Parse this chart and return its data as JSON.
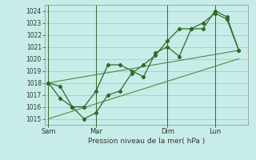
{
  "title": "",
  "xlabel": "Pression niveau de la mer( hPa )",
  "ylabel": "",
  "background_color": "#c8ede8",
  "grid_color": "#a0cdc8",
  "line_color": "#2d6b2d",
  "trend_color": "#4a8a4a",
  "ylim": [
    1014.5,
    1024.5
  ],
  "yticks": [
    1015,
    1016,
    1017,
    1018,
    1019,
    1020,
    1021,
    1022,
    1023,
    1024
  ],
  "day_labels": [
    "Sam",
    "Mar",
    "Dim",
    "Lun"
  ],
  "day_positions": [
    0,
    4,
    10,
    14
  ],
  "vline_positions": [
    0,
    4,
    10,
    14
  ],
  "line1_x": [
    0,
    1,
    2,
    3,
    4,
    5,
    6,
    7,
    8,
    9,
    10,
    11,
    12,
    13,
    14,
    15,
    16
  ],
  "line1_y": [
    1018.0,
    1017.7,
    1016.0,
    1016.0,
    1017.3,
    1019.5,
    1019.5,
    1019.0,
    1018.5,
    1020.5,
    1021.0,
    1020.2,
    1022.5,
    1022.5,
    1024.0,
    1023.5,
    1020.7
  ],
  "line2_x": [
    0,
    1,
    2,
    3,
    4,
    5,
    6,
    7,
    8,
    9,
    10,
    11,
    12,
    13,
    14,
    15,
    16
  ],
  "line2_y": [
    1018.0,
    1016.7,
    1016.0,
    1015.0,
    1015.5,
    1017.0,
    1017.3,
    1018.8,
    1019.5,
    1020.3,
    1021.5,
    1022.5,
    1022.5,
    1023.0,
    1023.8,
    1023.3,
    1020.7
  ],
  "trend1_x": [
    0,
    16
  ],
  "trend1_y": [
    1018.0,
    1020.7
  ],
  "trend2_x": [
    0,
    16
  ],
  "trend2_y": [
    1015.0,
    1020.0
  ],
  "xlim": [
    -0.3,
    16.8
  ],
  "total_points": 17
}
